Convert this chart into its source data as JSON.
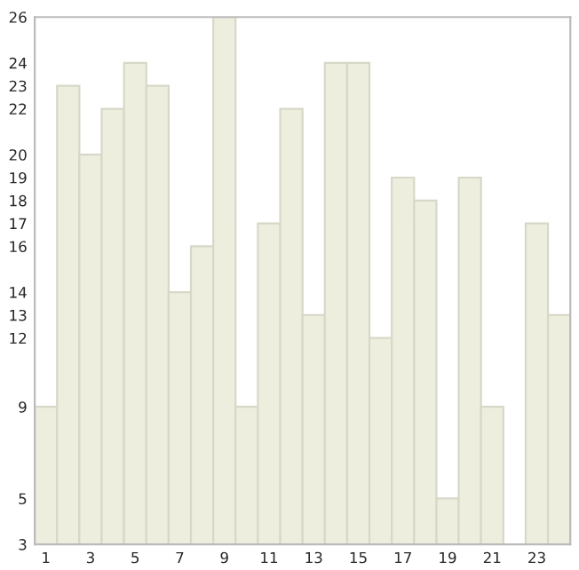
{
  "chart_data": {
    "type": "bar",
    "categories": [
      "1",
      null,
      "3",
      null,
      "5",
      null,
      "7",
      null,
      "9",
      null,
      "11",
      null,
      "13",
      null,
      "15",
      null,
      "17",
      null,
      "19",
      null,
      "21",
      null,
      "23",
      null
    ],
    "values": [
      9,
      23,
      20,
      22,
      24,
      23,
      14,
      16,
      26,
      9,
      17,
      22,
      13,
      24,
      24,
      12,
      19,
      18,
      5,
      19,
      9,
      3,
      17,
      13
    ],
    "color": "#eeeedf",
    "ylim": [
      3,
      26
    ],
    "yticks": [
      3,
      5,
      9,
      12,
      13,
      14,
      16,
      17,
      18,
      19,
      20,
      22,
      23,
      24,
      26
    ],
    "grid": false,
    "legend": false
  }
}
